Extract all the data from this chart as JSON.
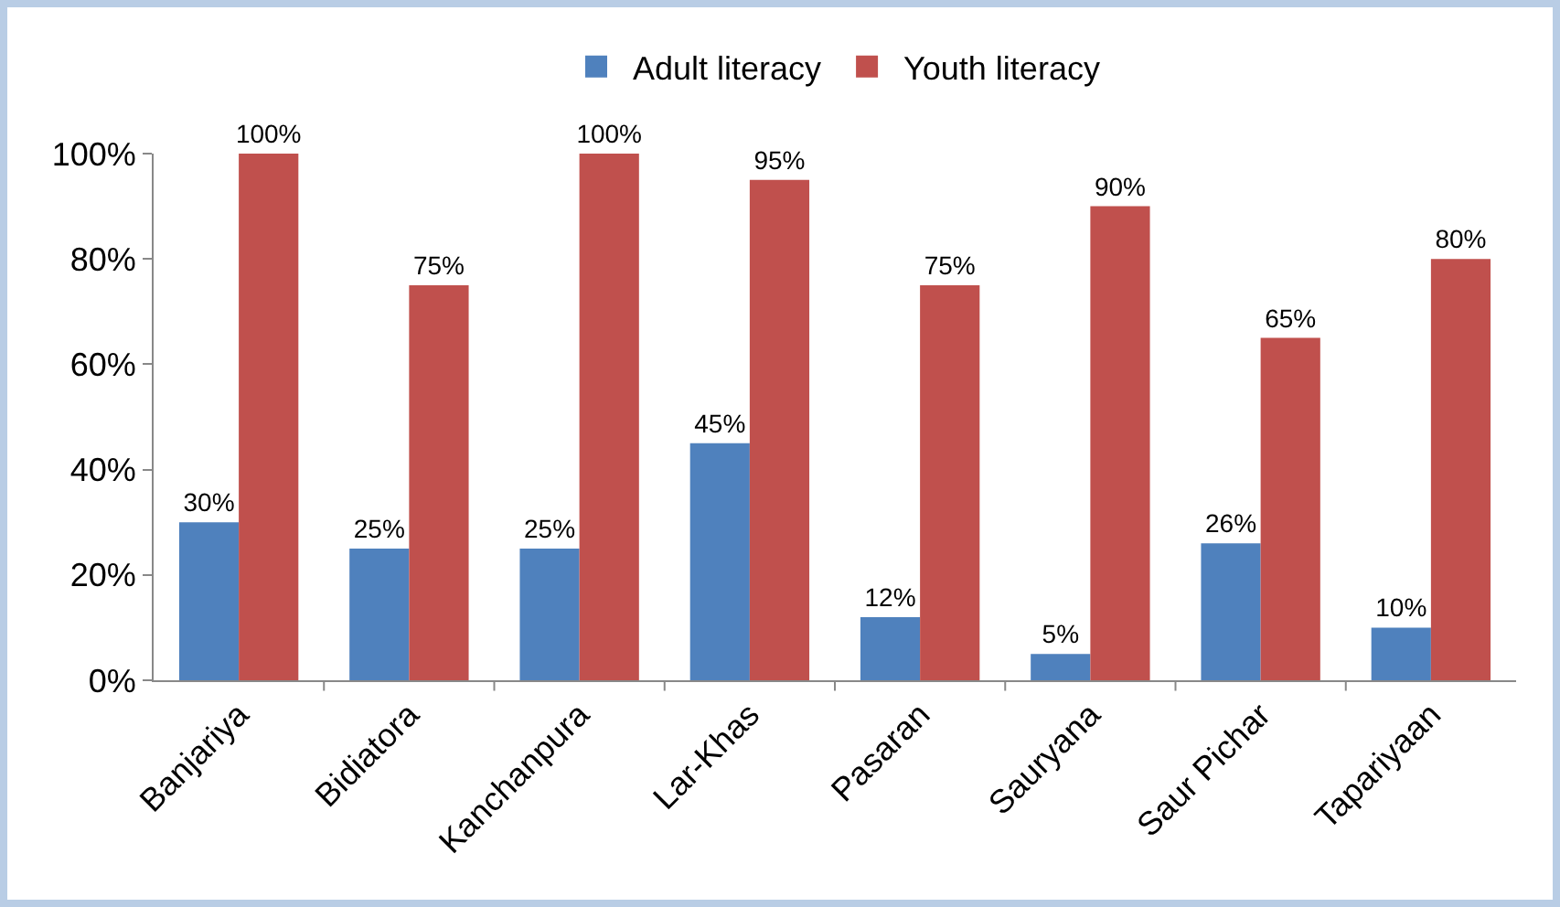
{
  "chart_data": {
    "type": "bar",
    "categories": [
      "Banjariya",
      "Bidiatora",
      "Kanchanpura",
      "Lar-Khas",
      "Pasaran",
      "Sauryana",
      "Saur Pichar",
      "Tapariyaan"
    ],
    "series": [
      {
        "name": "Adult literacy",
        "color": "#4f81bd",
        "values": [
          30,
          25,
          25,
          45,
          12,
          5,
          26,
          10
        ],
        "value_labels": [
          "30%",
          "25%",
          "25%",
          "45%",
          "12%",
          "5%",
          "26%",
          "10%"
        ]
      },
      {
        "name": "Youth literacy",
        "color": "#c0504d",
        "values": [
          100,
          75,
          100,
          95,
          75,
          90,
          65,
          80
        ],
        "value_labels": [
          "100%",
          "75%",
          "100%",
          "95%",
          "75%",
          "90%",
          "65%",
          "80%"
        ]
      }
    ],
    "ylim": [
      0,
      100
    ],
    "yticks": [
      {
        "value": 0,
        "label": "0%"
      },
      {
        "value": 20,
        "label": "20%"
      },
      {
        "value": 40,
        "label": "40%"
      },
      {
        "value": 60,
        "label": "60%"
      },
      {
        "value": 80,
        "label": "80%"
      },
      {
        "value": 100,
        "label": "100%"
      }
    ],
    "grid": false,
    "legend": "top"
  }
}
